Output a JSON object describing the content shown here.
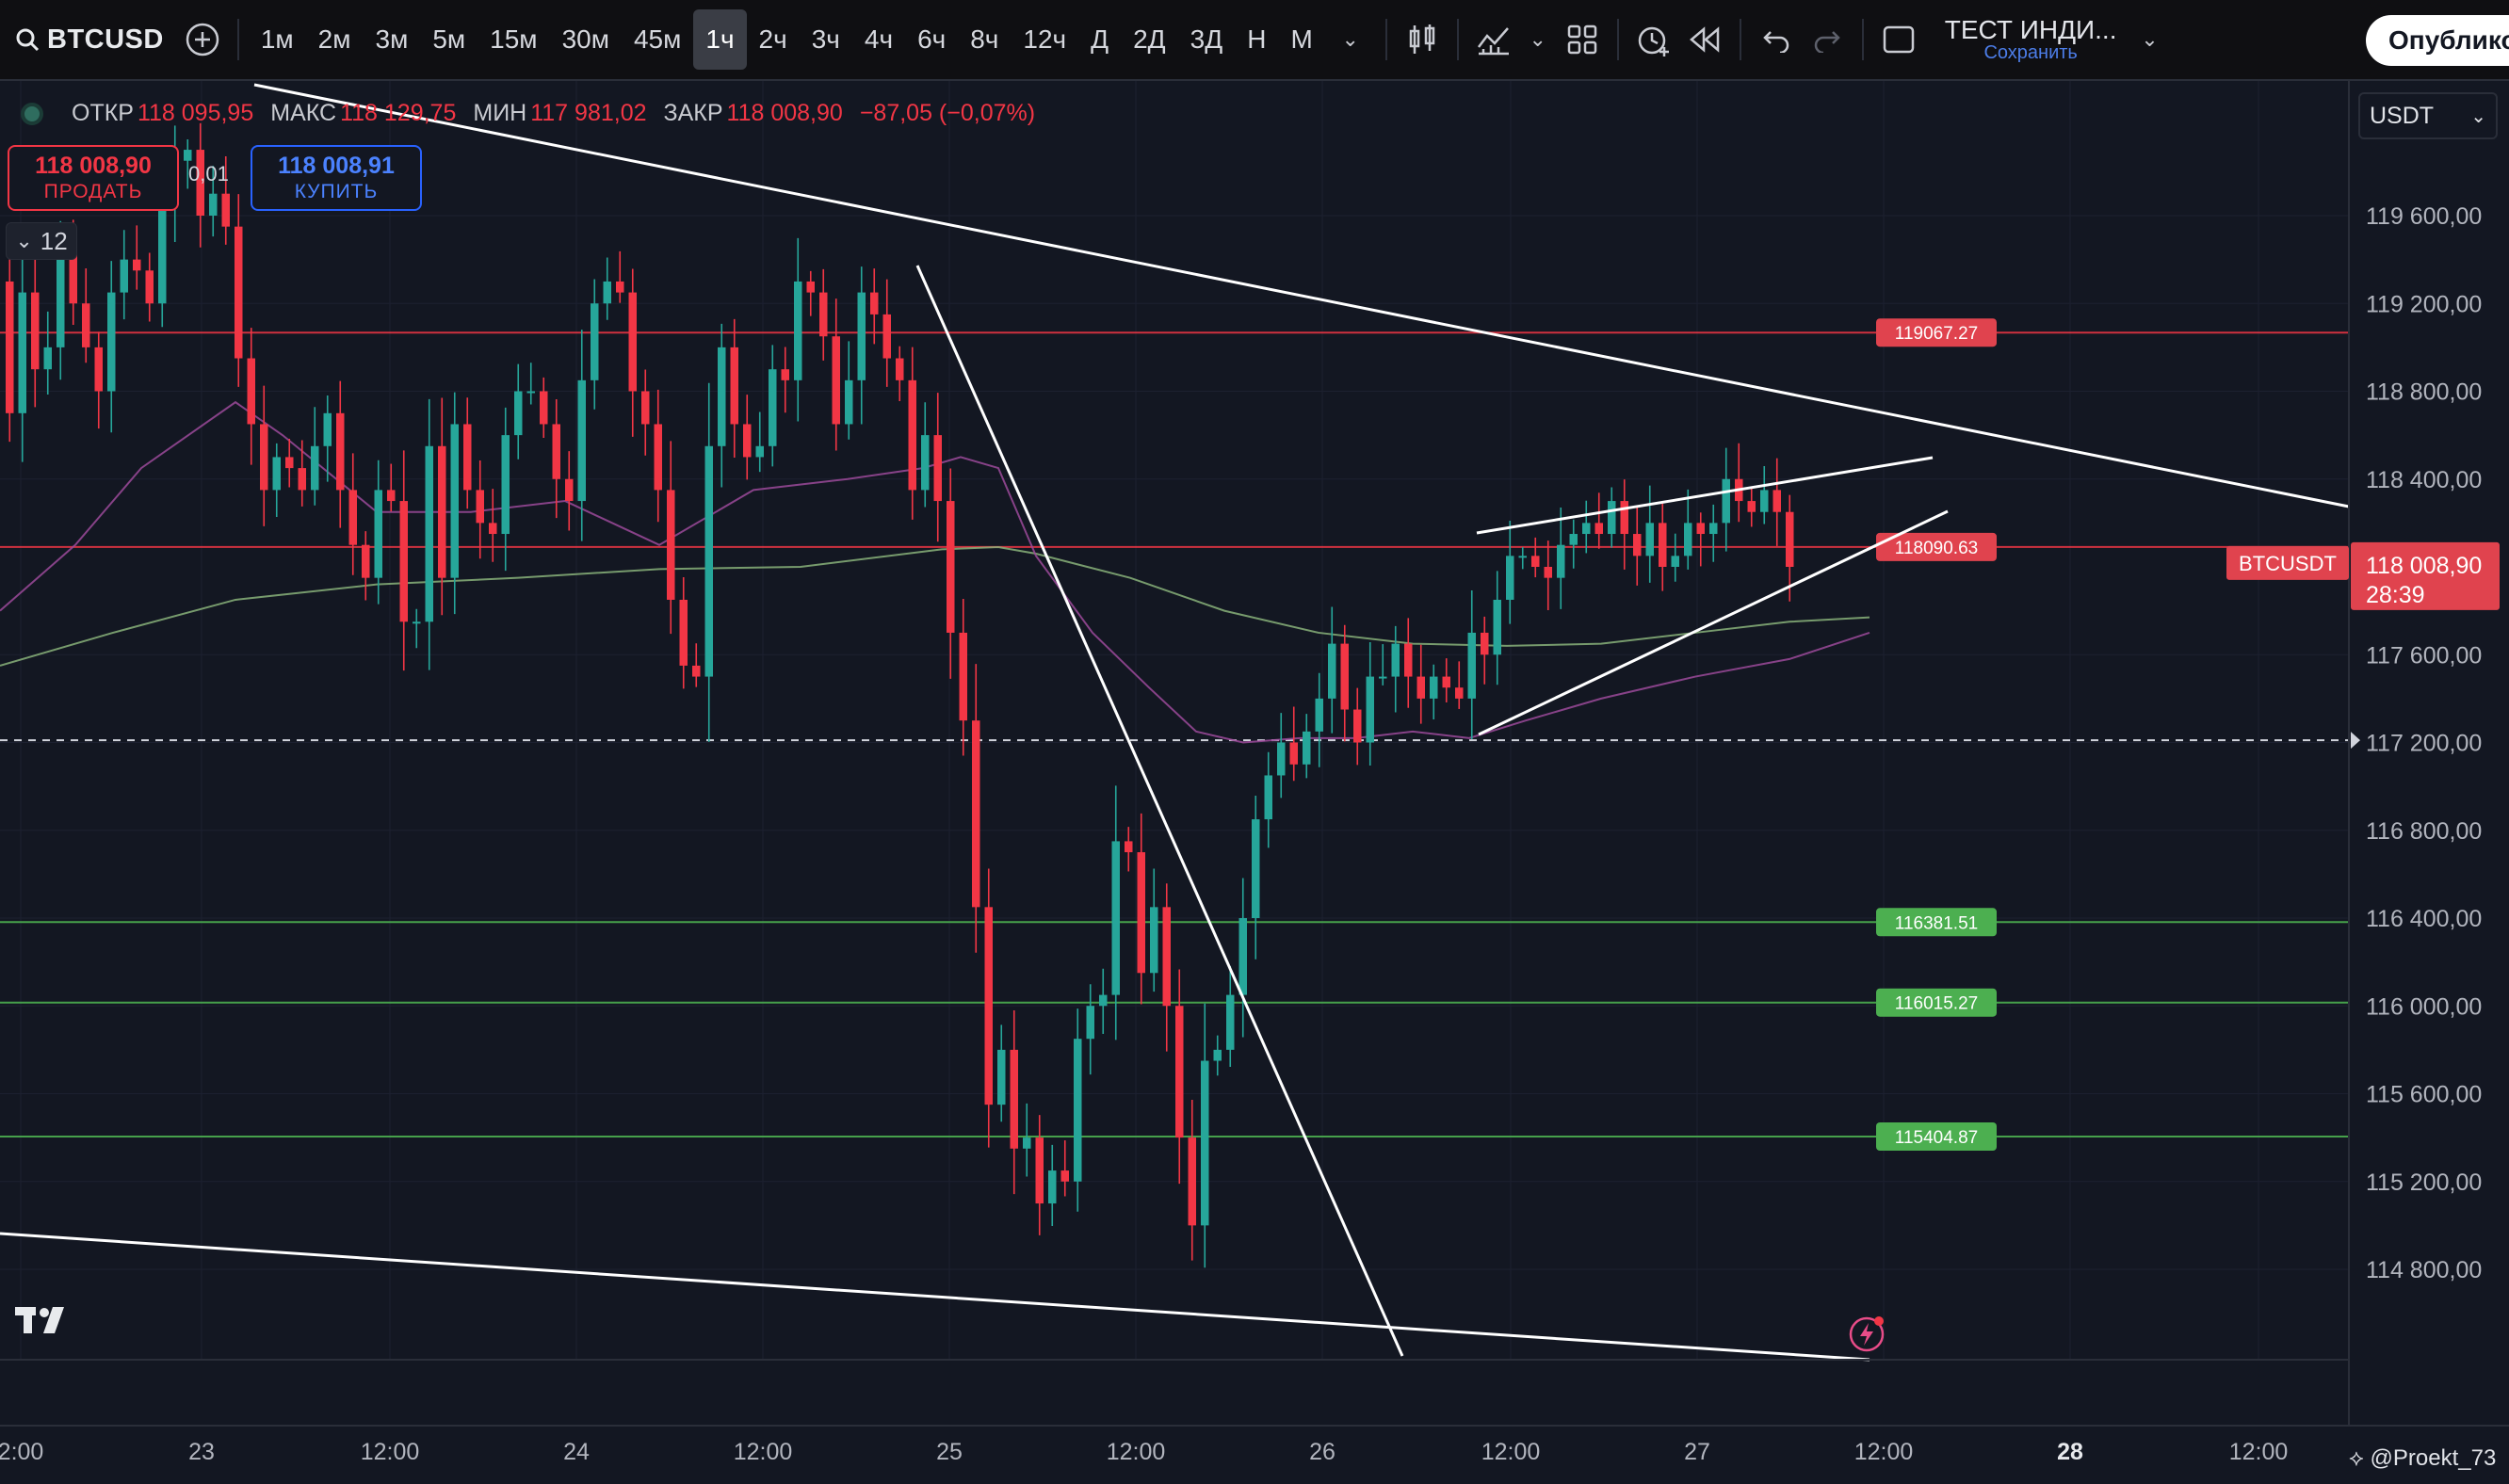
{
  "toolbar": {
    "symbol": "BTCUSD",
    "intervals": [
      "1м",
      "2м",
      "3м",
      "5м",
      "15м",
      "30м",
      "45м",
      "1ч",
      "2ч",
      "3ч",
      "4ч",
      "6ч",
      "8ч",
      "12ч",
      "Д",
      "2Д",
      "3Д",
      "Н",
      "М"
    ],
    "active_interval": "1ч",
    "layout_name": "ТЕСТ ИНДИ...",
    "layout_status": "Сохранить",
    "publish_label": "Опублико"
  },
  "legend": {
    "open_label": "ОТКР",
    "open": "118 095,95",
    "high_label": "МАКС",
    "high": "118 129,75",
    "low_label": "МИН",
    "low": "117 981,02",
    "close_label": "ЗАКР",
    "close": "118 008,90",
    "change": "−87,05 (−0,07%)"
  },
  "trade": {
    "sell_price": "118 008,90",
    "sell_label": "ПРОДАТЬ",
    "spread": "0,01",
    "buy_price": "118 008,91",
    "buy_label": "КУПИТЬ"
  },
  "indicators_count": "12",
  "currency": "USDT",
  "watermark": "@Proekt_73",
  "colors": {
    "up": "#26a69a",
    "down": "#f23645",
    "bg": "#131722",
    "green_line": "#4caf50",
    "red_line": "#f23645",
    "trend": "#ffffff"
  },
  "price_axis": {
    "min": 114500,
    "max": 120100,
    "labels": [
      {
        "value": 119600,
        "text": "119 600,00"
      },
      {
        "value": 119200,
        "text": "119 200,00"
      },
      {
        "value": 118800,
        "text": "118 800,00"
      },
      {
        "value": 118400,
        "text": "118 400,00"
      },
      {
        "value": 117600,
        "text": "117 600,00"
      },
      {
        "value": 117200,
        "text": "117 200,00"
      },
      {
        "value": 116800,
        "text": "116 800,00"
      },
      {
        "value": 116400,
        "text": "116 400,00"
      },
      {
        "value": 116000,
        "text": "116 000,00"
      },
      {
        "value": 115600,
        "text": "115 600,00"
      },
      {
        "value": 115200,
        "text": "115 200,00"
      },
      {
        "value": 114800,
        "text": "114 800,00"
      }
    ]
  },
  "time_axis": [
    {
      "text": "2:00",
      "bold": false
    },
    {
      "text": "23",
      "bold": false
    },
    {
      "text": "12:00",
      "bold": false
    },
    {
      "text": "24",
      "bold": false
    },
    {
      "text": "12:00",
      "bold": false
    },
    {
      "text": "25",
      "bold": false
    },
    {
      "text": "12:00",
      "bold": false
    },
    {
      "text": "26",
      "bold": false
    },
    {
      "text": "12:00",
      "bold": false
    },
    {
      "text": "27",
      "bold": false
    },
    {
      "text": "12:00",
      "bold": false
    },
    {
      "text": "28",
      "bold": true
    },
    {
      "text": "12:00",
      "bold": false
    }
  ],
  "levels": [
    {
      "value": 119067.27,
      "label": "119067.27",
      "kind": "red"
    },
    {
      "value": 118090.63,
      "label": "118090.63",
      "kind": "red"
    },
    {
      "value": 116381.51,
      "label": "116381.51",
      "kind": "green"
    },
    {
      "value": 116015.27,
      "label": "116015.27",
      "kind": "green"
    },
    {
      "value": 115404.87,
      "label": "115404.87",
      "kind": "green"
    }
  ],
  "last_price": {
    "symbol": "BTCUSDT",
    "price": "118 008,90",
    "countdown": "28:39",
    "value": 118008.9
  },
  "dashed_level": 117210,
  "chart_data": {
    "type": "candlestick",
    "closes": [
      118700,
      119250,
      118900,
      119000,
      119450,
      119200,
      119000,
      118800,
      119250,
      119400,
      119350,
      119200,
      119650,
      119850,
      119900,
      119600,
      119700,
      119550,
      118950,
      118650,
      118350,
      118500,
      118450,
      118350,
      118550,
      118700,
      118350,
      118100,
      117950,
      118350,
      118300,
      117750,
      117750,
      118550,
      117950,
      118650,
      118350,
      118200,
      118150,
      118600,
      118800,
      118800,
      118650,
      118400,
      118300,
      118850,
      119200,
      119300,
      119250,
      118800,
      118650,
      118350,
      117850,
      117550,
      117500,
      118550,
      119000,
      118650,
      118500,
      118550,
      118900,
      118850,
      119300,
      119250,
      119050,
      118650,
      118850,
      119250,
      119150,
      118950,
      118850,
      118350,
      118600,
      118300,
      117700,
      117300,
      116450,
      115550,
      115800,
      115350,
      115400,
      115100,
      115250,
      115200,
      115850,
      116000,
      116050,
      116750,
      116700,
      116150,
      116450,
      116000,
      115400,
      115000,
      115750,
      115800,
      116050,
      116400,
      116850,
      117050,
      117200,
      117100,
      117250,
      117400,
      117650,
      117350,
      117200,
      117500,
      117500,
      117650,
      117500,
      117400,
      117500,
      117450,
      117400,
      117700,
      117600,
      117850,
      118050,
      118050,
      118000,
      117950,
      118100,
      118150,
      118200,
      118150,
      118300,
      118150,
      118050,
      118200,
      118000,
      118050,
      118200,
      118150,
      118200,
      118400,
      118300,
      118250,
      118350,
      118250,
      118000
    ],
    "y_range": [
      114500,
      120100
    ],
    "ma_fast": [
      [
        0,
        117800
      ],
      [
        80,
        118100
      ],
      [
        150,
        118450
      ],
      [
        250,
        118750
      ],
      [
        300,
        118600
      ],
      [
        400,
        118250
      ],
      [
        500,
        118250
      ],
      [
        600,
        118300
      ],
      [
        700,
        118100
      ],
      [
        800,
        118350
      ],
      [
        900,
        118400
      ],
      [
        980,
        118450
      ],
      [
        1020,
        118500
      ],
      [
        1060,
        118450
      ],
      [
        1100,
        118050
      ],
      [
        1160,
        117700
      ],
      [
        1220,
        117450
      ],
      [
        1270,
        117250
      ],
      [
        1320,
        117200
      ],
      [
        1380,
        117220
      ],
      [
        1440,
        117220
      ],
      [
        1500,
        117250
      ],
      [
        1560,
        117220
      ],
      [
        1620,
        117300
      ],
      [
        1700,
        117400
      ],
      [
        1800,
        117500
      ],
      [
        1900,
        117580
      ],
      [
        1985,
        117700
      ]
    ],
    "ma_slow": [
      [
        0,
        117550
      ],
      [
        120,
        117700
      ],
      [
        250,
        117850
      ],
      [
        400,
        117920
      ],
      [
        550,
        117950
      ],
      [
        700,
        117990
      ],
      [
        850,
        118000
      ],
      [
        1000,
        118080
      ],
      [
        1060,
        118090
      ],
      [
        1100,
        118060
      ],
      [
        1200,
        117950
      ],
      [
        1300,
        117800
      ],
      [
        1400,
        117700
      ],
      [
        1500,
        117650
      ],
      [
        1600,
        117640
      ],
      [
        1700,
        117650
      ],
      [
        1800,
        117700
      ],
      [
        1900,
        117750
      ],
      [
        1985,
        117770
      ]
    ],
    "trendlines": [
      [
        [
          270,
          90
        ],
        [
          2494,
          538
        ]
      ],
      [
        [
          0,
          1310
        ],
        [
          1985,
          1444
        ]
      ],
      [
        [
          974,
          282
        ],
        [
          1489,
          1440
        ]
      ],
      [
        [
          1568,
          566
        ],
        [
          2052,
          486
        ]
      ],
      [
        [
          1570,
          780
        ],
        [
          2068,
          543
        ]
      ]
    ]
  }
}
